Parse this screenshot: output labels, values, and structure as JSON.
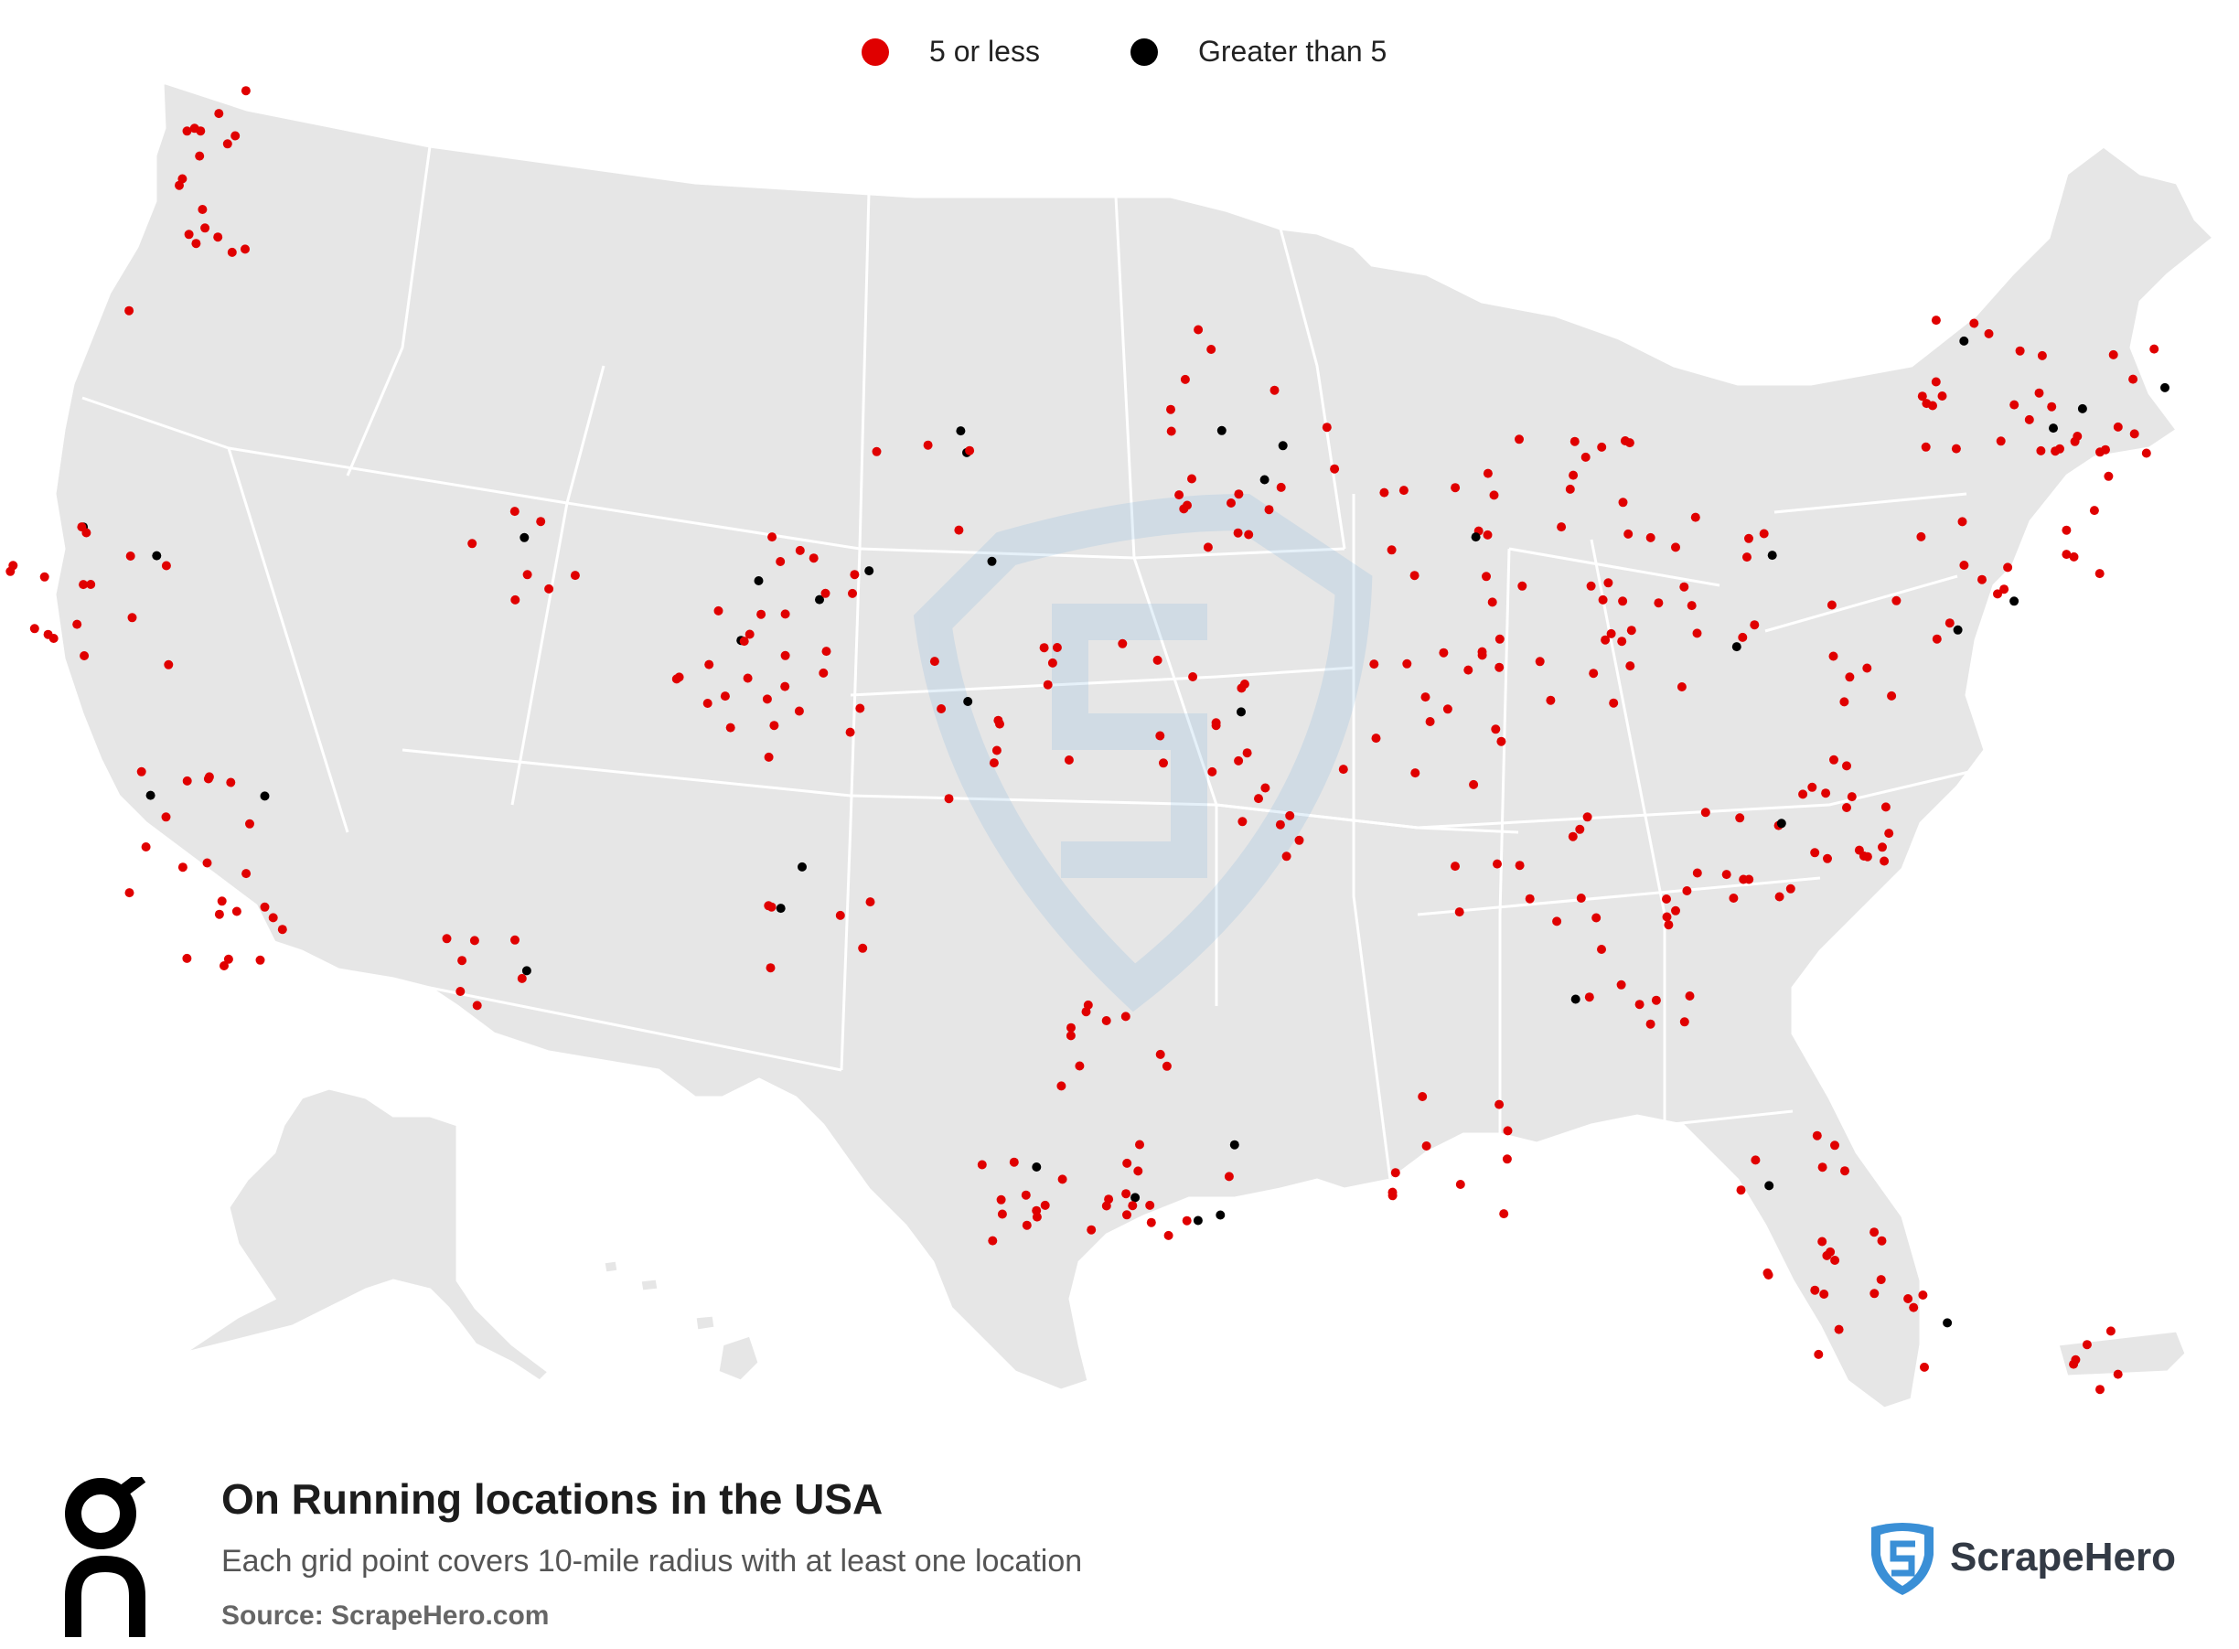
{
  "legend": {
    "small": {
      "label": "5 or less",
      "color": "#e00000"
    },
    "large": {
      "label": "Greater than 5",
      "color": "#000000"
    }
  },
  "map": {
    "region": "United States",
    "land_color": "#e6e6e6",
    "border_color": "#ffffff",
    "watermark": "scrapehero-shield-icon"
  },
  "footer": {
    "title": "On Running locations in the USA",
    "subtitle": "Each grid point covers 10-mile radius with at least one location",
    "source": "Source: ScrapeHero.com",
    "brand_logo_icon": "on-logo-icon",
    "brand_name": "ScrapeHero",
    "brand_color": "#3a8fd6"
  }
}
